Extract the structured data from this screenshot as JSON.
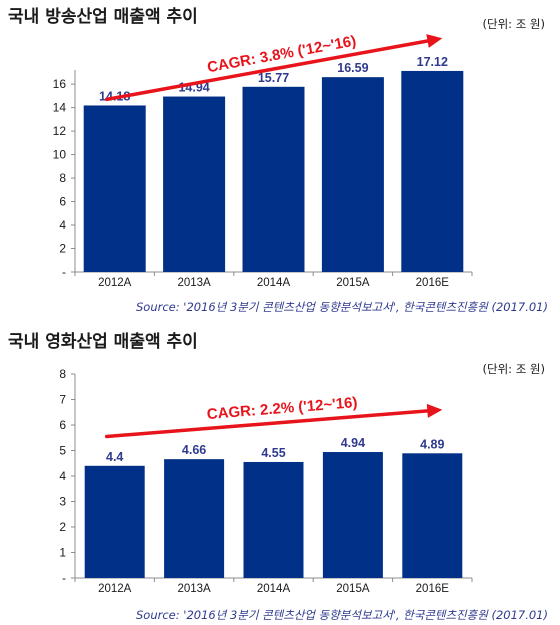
{
  "chart_data": [
    {
      "type": "bar",
      "title": "국내 방송산업 매출액 추이",
      "unit_note": "(단위: 조 원)",
      "categories": [
        "2012A",
        "2013A",
        "2014A",
        "2015A",
        "2016E"
      ],
      "values": [
        14.18,
        14.94,
        15.77,
        16.59,
        17.12
      ],
      "value_labels": [
        "14.18",
        "14.94",
        "15.77",
        "16.59",
        "17.12"
      ],
      "ylim": [
        0,
        16
      ],
      "yticks": [
        0,
        2,
        4,
        6,
        8,
        10,
        12,
        14,
        16
      ],
      "ytick_labels": [
        "-",
        "2",
        "4",
        "6",
        "8",
        "10",
        "12",
        "14",
        "16"
      ],
      "bar_color": "#003087",
      "label_color": "#2f3a8f",
      "annotation": {
        "text": "CAGR: 3.8% ('12~'16)",
        "color": "#e8141b",
        "arrow_from": 14.7,
        "arrow_to": 19.9
      },
      "source": "Source: '2016년 3분기 콘텐츠산업 동향분석보고서', 한국콘텐츠진흥원 (2017.01)",
      "grid": false
    },
    {
      "type": "bar",
      "title": "국내 영화산업 매출액 추이",
      "unit_note": "(단위: 조 원)",
      "categories": [
        "2012A",
        "2013A",
        "2014A",
        "2015A",
        "2016E"
      ],
      "values": [
        4.4,
        4.66,
        4.55,
        4.94,
        4.89
      ],
      "value_labels": [
        "4.4",
        "4.66",
        "4.55",
        "4.94",
        "4.89"
      ],
      "ylim": [
        0,
        8
      ],
      "yticks": [
        0,
        1,
        2,
        3,
        4,
        5,
        6,
        7,
        8
      ],
      "ytick_labels": [
        "-",
        "1",
        "2",
        "3",
        "4",
        "5",
        "6",
        "7",
        "8"
      ],
      "bar_color": "#003087",
      "label_color": "#2f3a8f",
      "annotation": {
        "text": "CAGR: 2.2% ('12~'16)",
        "color": "#e8141b",
        "arrow_from": 5.55,
        "arrow_to": 6.6
      },
      "source": "Source: '2016년 3분기 콘텐츠산업 동향분석보고서', 한국콘텐츠진흥원 (2017.01)",
      "grid": false
    }
  ]
}
